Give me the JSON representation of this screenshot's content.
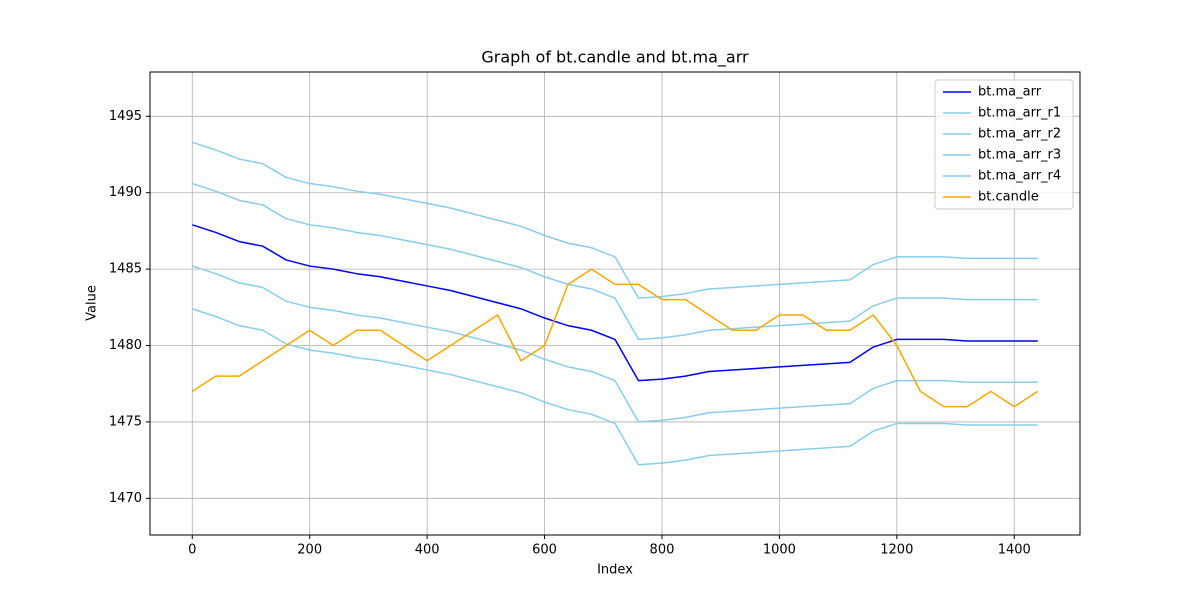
{
  "chart_data": {
    "type": "line",
    "title": "Graph of bt.candle and bt.ma_arr",
    "x_label": "Index",
    "y_label": "Value",
    "x": [
      0,
      40,
      80,
      120,
      160,
      200,
      240,
      280,
      320,
      360,
      400,
      440,
      480,
      520,
      560,
      600,
      640,
      680,
      720,
      760,
      800,
      840,
      880,
      920,
      960,
      1000,
      1040,
      1080,
      1120,
      1160,
      1200,
      1240,
      1280,
      1320,
      1360,
      1400,
      1440
    ],
    "series": [
      {
        "name": "bt.ma_arr",
        "color": "#0000ff",
        "values": [
          1487.9,
          1487.4,
          1486.8,
          1486.5,
          1485.6,
          1485.2,
          1485.0,
          1484.7,
          1484.5,
          1484.2,
          1483.9,
          1483.6,
          1483.2,
          1482.8,
          1482.4,
          1481.8,
          1481.3,
          1481.0,
          1480.4,
          1477.7,
          1477.8,
          1478.0,
          1478.3,
          1478.4,
          1478.5,
          1478.6,
          1478.7,
          1478.8,
          1478.9,
          1479.9,
          1480.4,
          1480.4,
          1480.4,
          1480.3,
          1480.3,
          1480.3,
          1480.3
        ]
      },
      {
        "name": "bt.ma_arr_r1",
        "color": "#87ceeb",
        "values": [
          1493.3,
          1492.8,
          1492.2,
          1491.9,
          1491.0,
          1490.6,
          1490.4,
          1490.1,
          1489.9,
          1489.6,
          1489.3,
          1489.0,
          1488.6,
          1488.2,
          1487.8,
          1487.2,
          1486.7,
          1486.4,
          1485.8,
          1483.1,
          1483.2,
          1483.4,
          1483.7,
          1483.8,
          1483.9,
          1484.0,
          1484.1,
          1484.2,
          1484.3,
          1485.3,
          1485.8,
          1485.8,
          1485.8,
          1485.7,
          1485.7,
          1485.7,
          1485.7
        ]
      },
      {
        "name": "bt.ma_arr_r2",
        "color": "#87ceeb",
        "values": [
          1490.6,
          1490.1,
          1489.5,
          1489.2,
          1488.3,
          1487.9,
          1487.7,
          1487.4,
          1487.2,
          1486.9,
          1486.6,
          1486.3,
          1485.9,
          1485.5,
          1485.1,
          1484.5,
          1484.0,
          1483.7,
          1483.1,
          1480.4,
          1480.5,
          1480.7,
          1481.0,
          1481.1,
          1481.2,
          1481.3,
          1481.4,
          1481.5,
          1481.6,
          1482.6,
          1483.1,
          1483.1,
          1483.1,
          1483.0,
          1483.0,
          1483.0,
          1483.0
        ]
      },
      {
        "name": "bt.ma_arr_r3",
        "color": "#87ceeb",
        "values": [
          1485.2,
          1484.7,
          1484.1,
          1483.8,
          1482.9,
          1482.5,
          1482.3,
          1482.0,
          1481.8,
          1481.5,
          1481.2,
          1480.9,
          1480.5,
          1480.1,
          1479.7,
          1479.1,
          1478.6,
          1478.3,
          1477.7,
          1475.0,
          1475.1,
          1475.3,
          1475.6,
          1475.7,
          1475.8,
          1475.9,
          1476.0,
          1476.1,
          1476.2,
          1477.2,
          1477.7,
          1477.7,
          1477.7,
          1477.6,
          1477.6,
          1477.6,
          1477.6
        ]
      },
      {
        "name": "bt.ma_arr_r4",
        "color": "#87ceeb",
        "values": [
          1482.4,
          1481.9,
          1481.3,
          1481.0,
          1480.1,
          1479.7,
          1479.5,
          1479.2,
          1479.0,
          1478.7,
          1478.4,
          1478.1,
          1477.7,
          1477.3,
          1476.9,
          1476.3,
          1475.8,
          1475.5,
          1474.9,
          1472.2,
          1472.3,
          1472.5,
          1472.8,
          1472.9,
          1473.0,
          1473.1,
          1473.2,
          1473.3,
          1473.4,
          1474.4,
          1474.9,
          1474.9,
          1474.9,
          1474.8,
          1474.8,
          1474.8,
          1474.8
        ]
      },
      {
        "name": "bt.candle",
        "color": "#ffa500",
        "values": [
          1477,
          1478,
          1478,
          1479,
          1480,
          1481,
          1480,
          1481,
          1481,
          1480,
          1479,
          1480,
          1481,
          1482,
          1479,
          1480,
          1484,
          1485,
          1484,
          1484,
          1483,
          1483,
          1482,
          1481,
          1481,
          1482,
          1482,
          1481,
          1481,
          1482,
          1480,
          1477,
          1476,
          1476,
          1477,
          1476,
          1477
        ]
      }
    ],
    "xlim": [
      -72,
      1512
    ],
    "ylim": [
      1467.6,
      1497.9
    ],
    "xticks": [
      0,
      200,
      400,
      600,
      800,
      1000,
      1200,
      1400
    ],
    "yticks": [
      1470,
      1475,
      1480,
      1485,
      1490,
      1495
    ],
    "grid": true,
    "legend": "upper right"
  }
}
